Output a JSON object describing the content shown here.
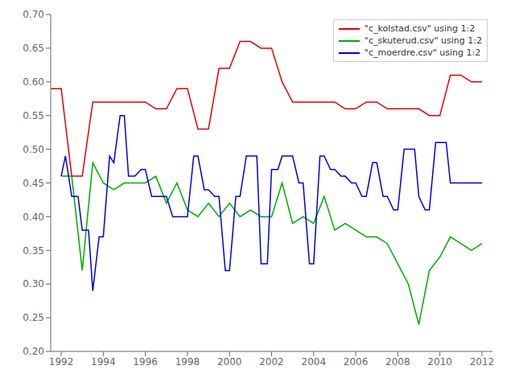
{
  "chart_data": {
    "type": "line",
    "series": [
      {
        "name": "\"c_kolstad.csv\" using 1:2",
        "color": "#dd0000",
        "x": [
          1991.5,
          1992.0,
          1992.5,
          1993.0,
          1993.5,
          1994.0,
          1994.5,
          1995.0,
          1995.5,
          1996.0,
          1996.5,
          1997.0,
          1997.5,
          1998.0,
          1998.5,
          1999.0,
          1999.5,
          2000.0,
          2000.5,
          2001.0,
          2001.5,
          2002.0,
          2002.5,
          2003.0,
          2003.5,
          2004.0,
          2004.5,
          2005.0,
          2005.5,
          2006.0,
          2006.5,
          2007.0,
          2007.5,
          2008.0,
          2008.5,
          2009.0,
          2009.5,
          2010.0,
          2010.5,
          2011.0,
          2011.5,
          2012.0
        ],
        "values": [
          0.59,
          0.59,
          0.46,
          0.46,
          0.57,
          0.57,
          0.57,
          0.57,
          0.57,
          0.57,
          0.56,
          0.56,
          0.59,
          0.59,
          0.53,
          0.53,
          0.62,
          0.62,
          0.66,
          0.66,
          0.65,
          0.65,
          0.6,
          0.57,
          0.57,
          0.57,
          0.57,
          0.57,
          0.56,
          0.56,
          0.57,
          0.57,
          0.56,
          0.56,
          0.56,
          0.56,
          0.55,
          0.55,
          0.61,
          0.61,
          0.6,
          0.6
        ]
      },
      {
        "name": "\"c_skuterud.csv\" using 1:2",
        "color": "#00aa00",
        "x": [
          1992.0,
          1992.5,
          1993.0,
          1993.5,
          1994.0,
          1994.5,
          1995.0,
          1995.5,
          1996.0,
          1996.5,
          1997.0,
          1997.5,
          1998.0,
          1998.5,
          1999.0,
          1999.5,
          2000.0,
          2000.5,
          2001.0,
          2001.5,
          2002.0,
          2002.5,
          2003.0,
          2003.5,
          2004.0,
          2004.5,
          2005.0,
          2005.5,
          2006.0,
          2006.5,
          2007.0,
          2007.5,
          2008.0,
          2008.5,
          2009.0,
          2009.5,
          2010.0,
          2010.5,
          2011.0,
          2011.5,
          2012.0
        ],
        "values": [
          0.46,
          0.46,
          0.32,
          0.48,
          0.45,
          0.44,
          0.45,
          0.45,
          0.45,
          0.46,
          0.42,
          0.45,
          0.41,
          0.4,
          0.42,
          0.4,
          0.42,
          0.4,
          0.41,
          0.4,
          0.4,
          0.45,
          0.39,
          0.4,
          0.39,
          0.43,
          0.38,
          0.39,
          0.38,
          0.37,
          0.37,
          0.36,
          0.33,
          0.3,
          0.24,
          0.32,
          0.34,
          0.37,
          0.36,
          0.35,
          0.36
        ]
      },
      {
        "name": "\"c_moerdre.csv\" using 1:2",
        "color": "#0000dd",
        "x": [
          1992.0,
          1992.2,
          1992.5,
          1992.8,
          1993.0,
          1993.3,
          1993.5,
          1993.8,
          1994.0,
          1994.3,
          1994.5,
          1994.8,
          1995.0,
          1995.2,
          1995.5,
          1995.8,
          1996.0,
          1996.3,
          1996.5,
          1996.8,
          1997.0,
          1997.3,
          1997.5,
          1997.8,
          1998.0,
          1998.3,
          1998.5,
          1998.8,
          1999.0,
          1999.3,
          1999.5,
          1999.8,
          2000.0,
          2000.3,
          2000.5,
          2000.8,
          2001.0,
          2001.3,
          2001.5,
          2001.8,
          2002.0,
          2002.3,
          2002.5,
          2002.8,
          2003.0,
          2003.3,
          2003.5,
          2003.8,
          2004.0,
          2004.3,
          2004.5,
          2004.8,
          2005.0,
          2005.3,
          2005.5,
          2005.8,
          2006.0,
          2006.3,
          2006.5,
          2006.8,
          2007.0,
          2007.3,
          2007.5,
          2007.8,
          2008.0,
          2008.3,
          2008.5,
          2008.8,
          2009.0,
          2009.3,
          2009.5,
          2009.8,
          2010.0,
          2010.3,
          2010.5,
          2010.8,
          2011.0,
          2011.3,
          2011.5,
          2011.8,
          2012.0
        ],
        "values": [
          0.46,
          0.49,
          0.43,
          0.43,
          0.38,
          0.38,
          0.29,
          0.37,
          0.37,
          0.49,
          0.48,
          0.55,
          0.55,
          0.46,
          0.46,
          0.47,
          0.47,
          0.43,
          0.43,
          0.43,
          0.43,
          0.4,
          0.4,
          0.4,
          0.4,
          0.49,
          0.49,
          0.44,
          0.44,
          0.43,
          0.43,
          0.32,
          0.32,
          0.43,
          0.43,
          0.49,
          0.49,
          0.49,
          0.33,
          0.33,
          0.47,
          0.47,
          0.49,
          0.49,
          0.49,
          0.45,
          0.45,
          0.33,
          0.33,
          0.49,
          0.49,
          0.47,
          0.47,
          0.46,
          0.46,
          0.45,
          0.45,
          0.43,
          0.43,
          0.48,
          0.48,
          0.43,
          0.43,
          0.41,
          0.41,
          0.5,
          0.5,
          0.5,
          0.43,
          0.41,
          0.41,
          0.51,
          0.51,
          0.51,
          0.45,
          0.45,
          0.45,
          0.45,
          0.45,
          0.45,
          0.45
        ]
      }
    ],
    "xlim": [
      1991.5,
      2012.5
    ],
    "xticks": [
      1992,
      1994,
      1996,
      1998,
      2000,
      2002,
      2004,
      2006,
      2008,
      2010,
      2012
    ],
    "ylim": [
      0.2,
      0.7
    ],
    "yticks": [
      {
        "value": 0.2,
        "label": "0.20"
      },
      0.25,
      {
        "value": 0.3,
        "label": "0.30"
      },
      0.35,
      {
        "value": 0.4,
        "label": "0.40"
      },
      0.45,
      {
        "value": 0.5,
        "label": "0.50"
      },
      0.55,
      {
        "value": 0.6,
        "label": "0.60"
      },
      0.65,
      {
        "value": 0.7,
        "label": "0.70"
      }
    ],
    "grid": false,
    "legend": "upper right"
  }
}
